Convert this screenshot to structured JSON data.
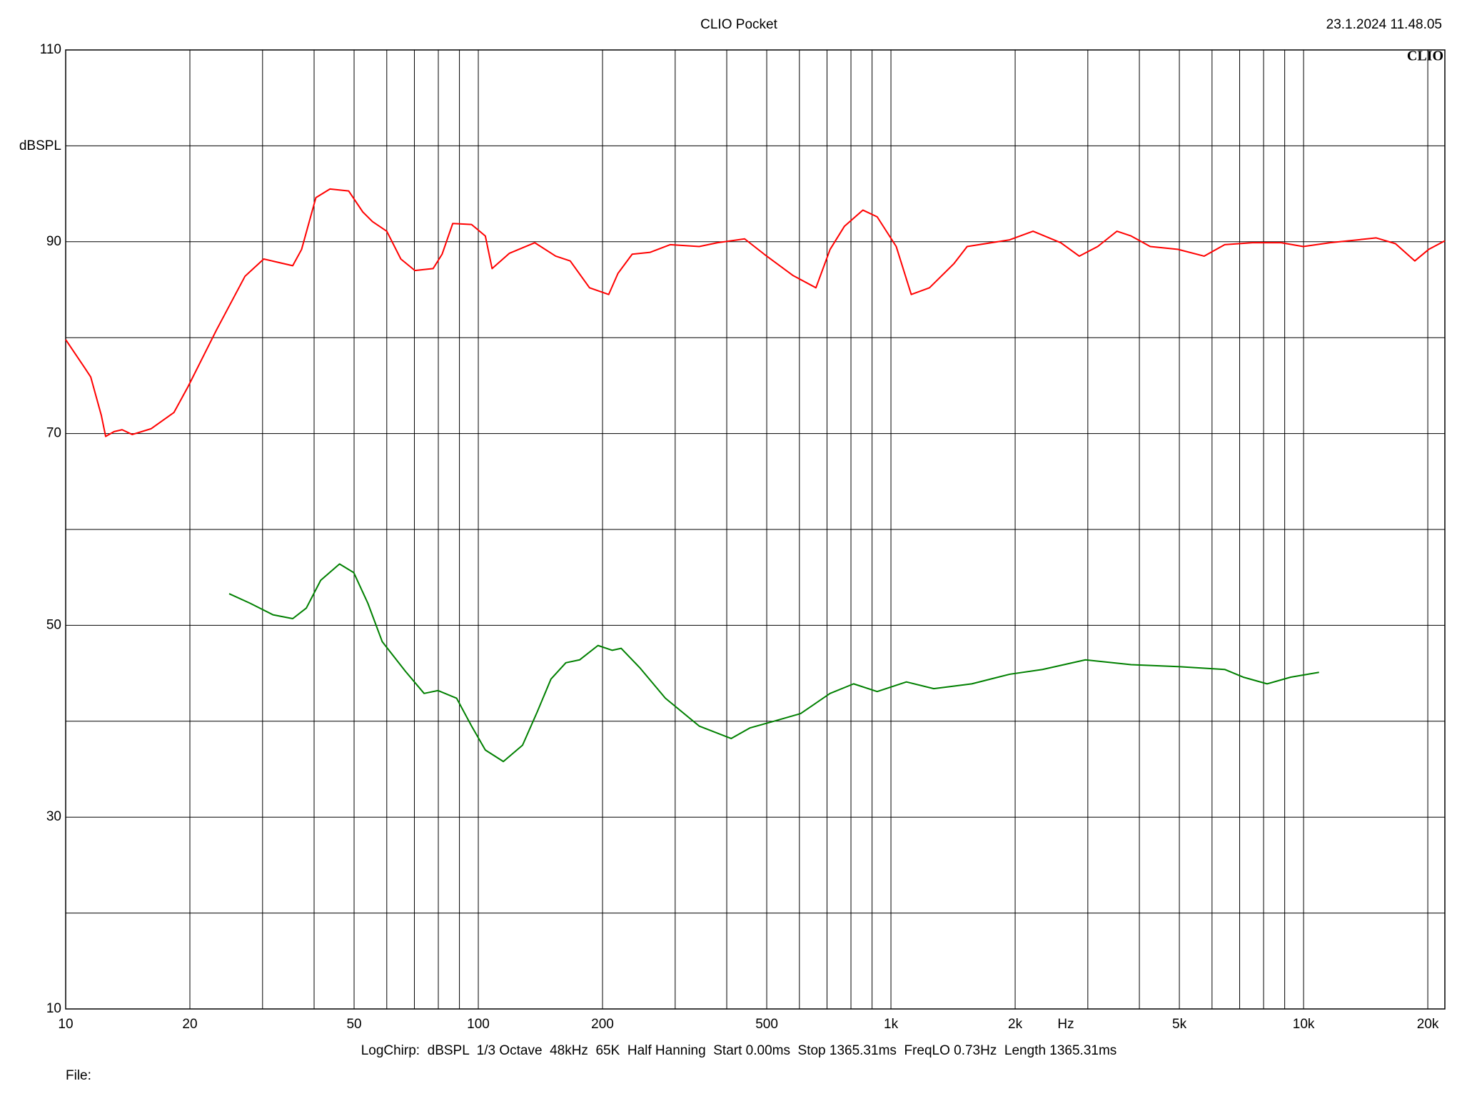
{
  "chart_data": {
    "type": "line",
    "title": "CLIO Pocket",
    "timestamp": "23.1.2024 11.48.05",
    "logo": "CLIO",
    "y_label": "dBSPL",
    "x_label": "Hz",
    "footer": "LogChirp:  dBSPL  1/3 Octave  48kHz  65K  Half Hanning  Start 0.00ms  Stop 1365.31ms  FreqLO 0.73Hz  Length 1365.31ms",
    "file_label": "File:",
    "xscale": "log",
    "xlim": [
      10,
      22000
    ],
    "ylim": [
      10,
      110
    ],
    "xticks": [
      10,
      20,
      50,
      100,
      200,
      500,
      {
        "value": 1000,
        "label": "1k"
      },
      {
        "value": 2000,
        "label": "2k"
      },
      {
        "value": 5000,
        "label": "5k"
      },
      {
        "value": 10000,
        "label": "10k"
      },
      {
        "value": 20000,
        "label": "20k"
      }
    ],
    "x_minor_grid": [
      30,
      40,
      60,
      70,
      80,
      90,
      300,
      400,
      600,
      700,
      800,
      900,
      3000,
      4000,
      6000,
      7000,
      8000,
      9000
    ],
    "yticks": [
      10,
      30,
      50,
      70,
      90,
      110
    ],
    "y_minor_grid": [
      20,
      40,
      60,
      80,
      100
    ],
    "grid": true,
    "series": [
      {
        "color": "#ff0000",
        "x": [
          10,
          11.1,
          11.5,
          12.2,
          12.5,
          13.1,
          13.7,
          14.5,
          16.1,
          18.3,
          19.8,
          23.2,
          27.2,
          30.2,
          35.5,
          37.3,
          40.4,
          43.7,
          48.5,
          52.5,
          55.4,
          60,
          64.9,
          70.2,
          77.7,
          81.7,
          86.7,
          96.3,
          104,
          108,
          119,
          137,
          154,
          167,
          186,
          207,
          218,
          236,
          261,
          292,
          343,
          380,
          442,
          493,
          578,
          658,
          712,
          771,
          855,
          926,
          1030,
          1120,
          1240,
          1420,
          1530,
          1940,
          2210,
          2580,
          2860,
          3170,
          3530,
          3820,
          4250,
          4970,
          5740,
          6440,
          7520,
          8820,
          9980,
          11600,
          15000,
          16700,
          18600,
          20100,
          22000
        ],
        "values": [
          79.8,
          76.9,
          75.9,
          71.9,
          69.7,
          70.2,
          70.4,
          69.9,
          70.5,
          72.2,
          74.9,
          80.8,
          86.4,
          88.2,
          87.5,
          89.2,
          94.6,
          95.5,
          95.3,
          93.1,
          92.1,
          91.1,
          88.2,
          87.0,
          87.2,
          88.7,
          91.9,
          91.8,
          90.6,
          87.2,
          88.8,
          89.9,
          88.5,
          88.0,
          85.2,
          84.5,
          86.7,
          88.7,
          88.9,
          89.7,
          89.5,
          89.9,
          90.3,
          88.7,
          86.5,
          85.2,
          89.2,
          91.6,
          93.3,
          92.6,
          89.5,
          84.5,
          85.2,
          87.7,
          89.5,
          90.2,
          91.1,
          89.9,
          88.5,
          89.5,
          91.1,
          90.6,
          89.5,
          89.2,
          88.5,
          89.7,
          89.9,
          89.9,
          89.5,
          89.9,
          90.4,
          89.8,
          88.0,
          89.2,
          90.1
        ]
      },
      {
        "color": "#008000",
        "x": [
          24.9,
          28.0,
          31.8,
          35.5,
          38.3,
          41.5,
          46.1,
          49.9,
          54.0,
          58.5,
          66.6,
          73.9,
          79.9,
          88.6,
          96.3,
          104,
          115,
          128,
          139,
          150,
          163,
          176,
          195,
          211,
          222,
          246,
          284,
          343,
          410,
          455,
          520,
          604,
          712,
          812,
          926,
          1090,
          1270,
          1570,
          1940,
          2330,
          2960,
          3820,
          4970,
          6440,
          7140,
          8160,
          9310,
          10900
        ],
        "values": [
          53.3,
          52.3,
          51.1,
          50.7,
          51.8,
          54.7,
          56.4,
          55.5,
          52.3,
          48.3,
          45.2,
          42.9,
          43.2,
          42.4,
          39.5,
          37.0,
          35.8,
          37.5,
          41.0,
          44.4,
          46.1,
          46.4,
          47.9,
          47.4,
          47.6,
          45.6,
          42.4,
          39.5,
          38.2,
          39.3,
          40.0,
          40.8,
          42.9,
          43.9,
          43.1,
          44.1,
          43.4,
          43.9,
          44.9,
          45.4,
          46.4,
          45.9,
          45.7,
          45.4,
          44.6,
          43.9,
          44.6,
          45.1
        ]
      }
    ]
  }
}
